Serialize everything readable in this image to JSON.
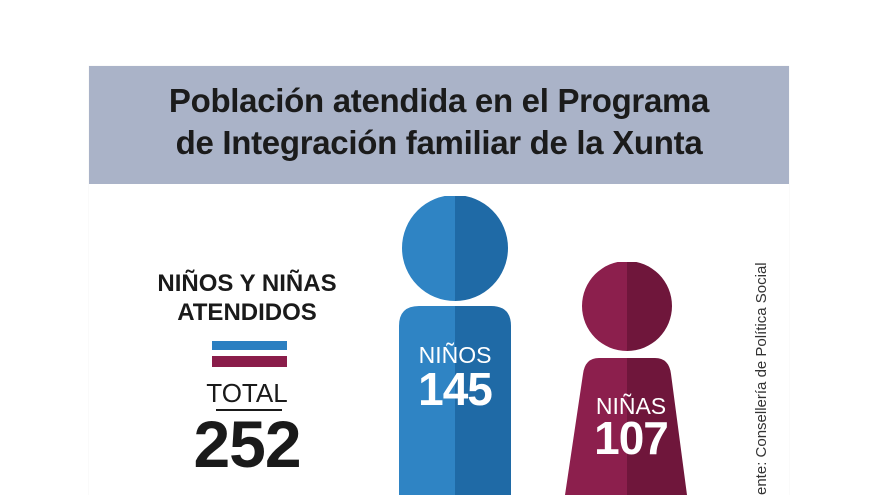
{
  "title": {
    "line1": "Población atendida en el Programa",
    "line2": "de Integración familiar de la Xunta"
  },
  "summary": {
    "label_line1": "NIÑOS Y NIÑAS",
    "label_line2": "ATENDIDOS",
    "total_label": "TOTAL",
    "total_value": "252"
  },
  "figures": {
    "boys": {
      "label": "NIÑOS",
      "value": "145",
      "color_light": "#2f84c4",
      "color_dark": "#1f6aa6"
    },
    "girls": {
      "label": "NIÑAS",
      "value": "107",
      "color_light": "#8c1f4d",
      "color_dark": "#6f163b"
    }
  },
  "colors": {
    "header_bg": "#aab3c8",
    "flag_top": "#2b7fc1",
    "flag_bottom": "#8a1d4a"
  },
  "source": {
    "text": "ente: Consellería de Política Social"
  }
}
